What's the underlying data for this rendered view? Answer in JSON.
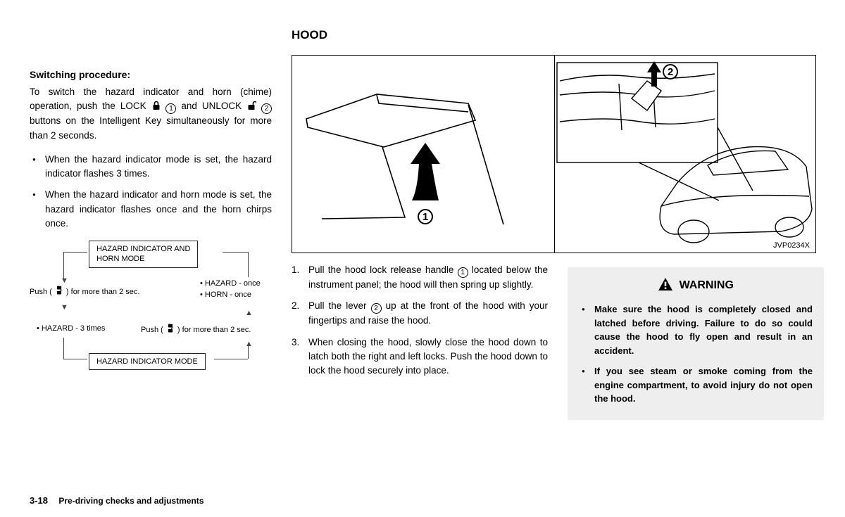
{
  "section_title": "HOOD",
  "col1": {
    "subheading": "Switching procedure:",
    "para": "To switch the hazard indicator and horn (chime) operation, push the LOCK {LOCK} {C1} and UNLOCK {UNLOCK} {C2} buttons on the Intelligent Key simultaneously for more than 2 seconds.",
    "bullets": [
      "When the hazard indicator mode is set, the hazard indicator flashes 3 times.",
      "When the hazard indicator and horn mode is set, the hazard indicator flashes once and the horn chirps once."
    ],
    "diagram": {
      "box_top": "HAZARD INDICATOR AND\nHORN MODE",
      "box_bottom": "HAZARD INDICATOR MODE",
      "left_label": "Push (  ) for more than 2 sec.",
      "right_top": "HAZARD - once",
      "right_bottom": "HORN - once",
      "left_bottom": "HAZARD - 3 times",
      "right_label": "Push (  ) for more than 2 sec."
    }
  },
  "illustration": {
    "label": "JVP0234X",
    "callout1": "1",
    "callout2": "2"
  },
  "col2": {
    "steps": [
      "Pull the hood lock release handle {C1} located below the instrument panel; the hood will then spring up slightly.",
      "Pull the lever {C2} up at the front of the hood with your fingertips and raise the hood.",
      "When closing the hood, slowly close the hood down to latch both the right and left locks. Push the hood down to lock the hood securely into place."
    ]
  },
  "warning": {
    "heading": "WARNING",
    "items": [
      "Make sure the hood is completely closed and latched before driving. Failure to do so could cause the hood to fly open and result in an accident.",
      "If you see steam or smoke coming from the engine compartment, to avoid injury do not open the hood."
    ]
  },
  "footer": {
    "page": "3-18",
    "chapter": "Pre-driving checks and adjustments"
  },
  "colors": {
    "background": "#ffffff",
    "text": "#000000",
    "warning_bg": "#eeeeee",
    "line": "#444444"
  }
}
